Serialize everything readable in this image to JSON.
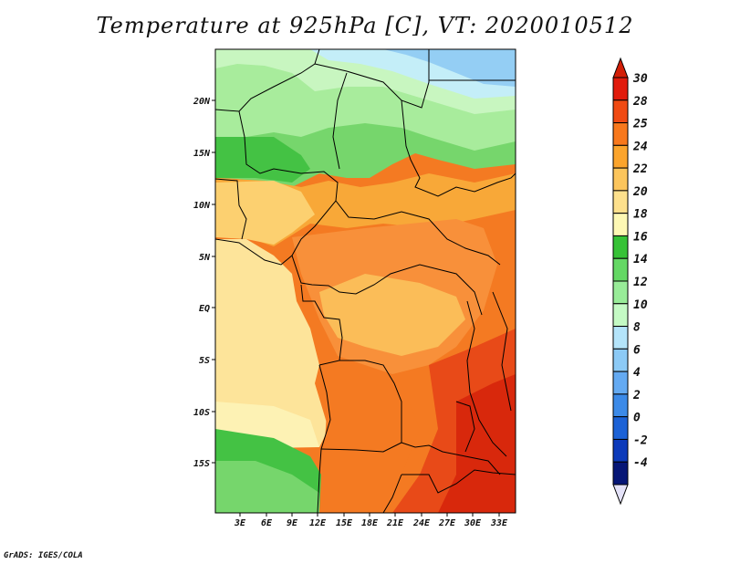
{
  "title": "Temperature at 925hPa [C], VT: 2020010512",
  "credit": "GrADS: IGES/COLA",
  "map": {
    "lat_labels": [
      "20N",
      "15N",
      "10N",
      "5N",
      "EQ",
      "5S",
      "10S",
      "15S"
    ],
    "lon_labels": [
      "3E",
      "6E",
      "9E",
      "12E",
      "15E",
      "18E",
      "21E",
      "24E",
      "27E",
      "30E",
      "33E"
    ]
  },
  "colorbar": {
    "labels": [
      "30",
      "28",
      "25",
      "24",
      "22",
      "20",
      "18",
      "16",
      "14",
      "12",
      "10",
      "8",
      "6",
      "4",
      "2",
      "0",
      "-2",
      "-4"
    ],
    "colors": [
      "#e11b0c",
      "#f04a12",
      "#f8781c",
      "#fba42c",
      "#fcc55c",
      "#fde08c",
      "#fdf8b4",
      "#36c236",
      "#64d864",
      "#98ec98",
      "#c4fac4",
      "#b4e4fa",
      "#8ccaf6",
      "#64aaf2",
      "#3c8ae8",
      "#1c62d6",
      "#0c3aba",
      "#061676"
    ],
    "top_arrow_color": "#d21e06",
    "bottom_arrow_color": "#e4e2f8"
  }
}
